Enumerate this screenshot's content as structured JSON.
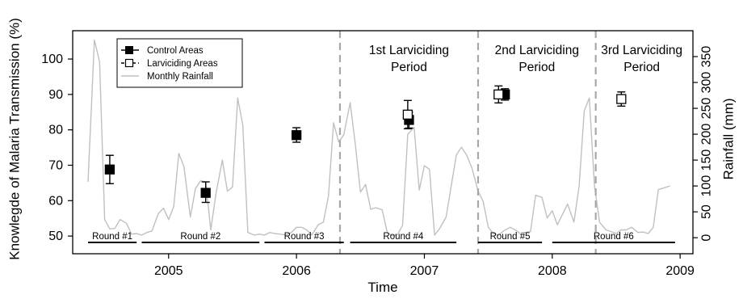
{
  "chart_data": {
    "type": "line",
    "xlabel": "Time",
    "ylabel_left": "Knowlegde of Malaria Transmission (%)",
    "ylabel_right": "Rainfall (mm)",
    "xlim": [
      2004.25,
      2009.1
    ],
    "ylim_left": [
      45,
      108
    ],
    "ylim_right": [
      -31,
      400
    ],
    "x_ticks": [
      2005,
      2006,
      2007,
      2008,
      2009
    ],
    "y_ticks_left": [
      50,
      60,
      70,
      80,
      90,
      100
    ],
    "y_ticks_right": [
      0,
      50,
      100,
      150,
      200,
      250,
      300,
      350
    ],
    "legend": {
      "position": "top-left",
      "entries": [
        "Control Areas",
        "Larviciding Areas",
        "Monthly Rainfall"
      ]
    },
    "colors": {
      "control": "#000000",
      "larviciding": "#000000",
      "rainfall": "#c0c0c0",
      "period_line": "#a8a8a8"
    },
    "series": [
      {
        "name": "Control Areas",
        "points": [
          {
            "x": 2004.54,
            "y": 68.8,
            "lo": 64.8,
            "hi": 72.8
          },
          {
            "x": 2005.29,
            "y": 62.2,
            "lo": 59.5,
            "hi": 65.3
          },
          {
            "x": 2006.0,
            "y": 78.5,
            "lo": 76.5,
            "hi": 80.6
          },
          {
            "x": 2006.88,
            "y": 82.8,
            "lo": 80.5,
            "hi": 85.0
          },
          {
            "x": 2007.63,
            "y": 90.0,
            "lo": 88.4,
            "hi": 91.6
          }
        ]
      },
      {
        "name": "Larviciding Areas",
        "points": [
          {
            "x": 2006.87,
            "y": 84.3,
            "lo": 80.3,
            "hi": 88.3
          },
          {
            "x": 2007.58,
            "y": 90.0,
            "lo": 87.6,
            "hi": 92.4
          },
          {
            "x": 2008.54,
            "y": 88.7,
            "lo": 86.7,
            "hi": 90.7
          }
        ]
      },
      {
        "name": "Monthly Rainfall",
        "x": [
          2004.37,
          2004.42,
          2004.46,
          2004.5,
          2004.54,
          2004.58,
          2004.62,
          2004.67,
          2004.71,
          2004.75,
          2004.79,
          2004.83,
          2004.87,
          2004.92,
          2004.96,
          2005.0,
          2005.04,
          2005.08,
          2005.12,
          2005.17,
          2005.21,
          2005.25,
          2005.29,
          2005.33,
          2005.37,
          2005.42,
          2005.46,
          2005.5,
          2005.54,
          2005.58,
          2005.62,
          2005.67,
          2005.71,
          2005.75,
          2005.79,
          2005.83,
          2005.87,
          2005.92,
          2005.96,
          2006.0,
          2006.04,
          2006.08,
          2006.12,
          2006.17,
          2006.21,
          2006.25,
          2006.29,
          2006.33,
          2006.37,
          2006.42,
          2006.46,
          2006.5,
          2006.54,
          2006.58,
          2006.62,
          2006.67,
          2006.71,
          2006.75,
          2006.79,
          2006.83,
          2006.87,
          2006.92,
          2006.96,
          2007.0,
          2007.04,
          2007.08,
          2007.12,
          2007.17,
          2007.21,
          2007.25,
          2007.29,
          2007.33,
          2007.37,
          2007.42,
          2007.46,
          2007.5,
          2007.54,
          2007.58,
          2007.62,
          2007.67,
          2007.71,
          2007.75,
          2007.79,
          2007.83,
          2007.87,
          2007.92,
          2007.96,
          2008.0,
          2008.04,
          2008.08,
          2008.12,
          2008.17,
          2008.21,
          2008.25,
          2008.29,
          2008.33,
          2008.37,
          2008.42,
          2008.46,
          2008.5,
          2008.54,
          2008.58,
          2008.62,
          2008.67,
          2008.71,
          2008.75,
          2008.79,
          2008.83,
          2008.87,
          2008.92
        ],
        "values": [
          108,
          382,
          340,
          35,
          17,
          18,
          35,
          28,
          7,
          8,
          5,
          10,
          13,
          47,
          57,
          35,
          60,
          163,
          137,
          40,
          95,
          110,
          108,
          15,
          85,
          150,
          90,
          98,
          270,
          218,
          10,
          5,
          7,
          5,
          10,
          8,
          7,
          5,
          10,
          20,
          20,
          15,
          5,
          25,
          30,
          80,
          222,
          185,
          199,
          261,
          180,
          88,
          103,
          55,
          58,
          54,
          10,
          4,
          6,
          24,
          200,
          213,
          92,
          139,
          132,
          5,
          18,
          40,
          100,
          160,
          175,
          160,
          136,
          90,
          70,
          20,
          8,
          5,
          13,
          20,
          15,
          8,
          10,
          12,
          82,
          78,
          38,
          52,
          25,
          45,
          65,
          30,
          100,
          245,
          270,
          100,
          30,
          15,
          12,
          8,
          15,
          15,
          20,
          10,
          11,
          8,
          20,
          93,
          96,
          100
        ]
      }
    ],
    "period_lines": [
      2006.34,
      2007.42,
      2008.34
    ],
    "period_labels": [
      {
        "lines": [
          "1st Larviciding",
          "Period"
        ],
        "x": 2006.88
      },
      {
        "lines": [
          "2nd Larviciding",
          "Period"
        ],
        "x": 2007.88
      },
      {
        "lines": [
          "3rd Larviciding",
          "Period"
        ],
        "x": 2008.7
      }
    ],
    "rounds": [
      {
        "label": "Round #1",
        "start": 2004.37,
        "end": 2004.75
      },
      {
        "label": "Round #2",
        "start": 2004.79,
        "end": 2005.71
      },
      {
        "label": "Round #3",
        "start": 2005.75,
        "end": 2006.37
      },
      {
        "label": "Round #4",
        "start": 2006.42,
        "end": 2007.25
      },
      {
        "label": "Round #5",
        "start": 2007.42,
        "end": 2007.92
      },
      {
        "label": "Round #6",
        "start": 2008.0,
        "end": 2008.96
      }
    ],
    "round_bar_level": 48.2,
    "grid": false
  }
}
